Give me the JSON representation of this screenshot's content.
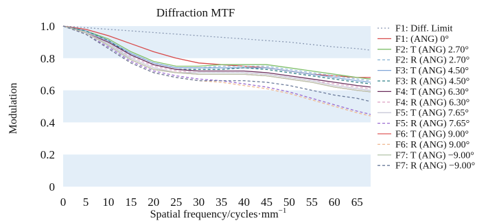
{
  "chart_data": {
    "type": "line",
    "title": "Diffraction MTF",
    "xlabel": "Spatial frequency/cycles·mm",
    "xlabel_superscript": "−1",
    "ylabel": "Modulation",
    "xlim": [
      0,
      68
    ],
    "ylim": [
      0,
      1.0
    ],
    "xticks": [
      "0",
      "5",
      "10",
      "15",
      "20",
      "25",
      "30",
      "35",
      "40",
      "45",
      "50",
      "55",
      "60",
      "65"
    ],
    "yticks": [
      "0",
      "0.2",
      "0.4",
      "0.6",
      "0.8",
      "1.0"
    ],
    "background_bands": "alternating light blue",
    "legend_position": "right",
    "x": [
      0,
      5,
      10,
      15,
      20,
      25,
      30,
      35,
      40,
      45,
      50,
      55,
      60,
      65,
      68
    ],
    "series": [
      {
        "name": "F1: Diff. Limit",
        "color": "#8a99b3",
        "dash": "dotted",
        "values": [
          1.0,
          0.99,
          0.98,
          0.97,
          0.96,
          0.95,
          0.94,
          0.93,
          0.92,
          0.91,
          0.9,
          0.885,
          0.87,
          0.86,
          0.85
        ]
      },
      {
        "name": "F1: (ANG) 0°",
        "color": "#d84a4a",
        "dash": "solid",
        "values": [
          1.0,
          0.98,
          0.94,
          0.89,
          0.84,
          0.8,
          0.77,
          0.76,
          0.75,
          0.74,
          0.72,
          0.7,
          0.69,
          0.68,
          0.68
        ]
      },
      {
        "name": "F2: T (ANG) 2.70°",
        "color": "#7fbf6a",
        "dash": "solid",
        "values": [
          1.0,
          0.97,
          0.92,
          0.84,
          0.78,
          0.75,
          0.75,
          0.76,
          0.76,
          0.76,
          0.74,
          0.72,
          0.7,
          0.68,
          0.67
        ]
      },
      {
        "name": "F2: R (ANG) 2.70°",
        "color": "#8fb8d6",
        "dash": "dashed",
        "values": [
          1.0,
          0.97,
          0.91,
          0.83,
          0.77,
          0.74,
          0.74,
          0.75,
          0.75,
          0.75,
          0.73,
          0.71,
          0.69,
          0.67,
          0.66
        ]
      },
      {
        "name": "F3: T (ANG) 4.50°",
        "color": "#7fa6d8",
        "dash": "solid",
        "values": [
          1.0,
          0.97,
          0.91,
          0.83,
          0.77,
          0.74,
          0.74,
          0.74,
          0.74,
          0.74,
          0.72,
          0.7,
          0.68,
          0.66,
          0.65
        ]
      },
      {
        "name": "F3: R (ANG) 4.50°",
        "color": "#2f7f86",
        "dash": "dashed",
        "values": [
          1.0,
          0.97,
          0.91,
          0.82,
          0.76,
          0.73,
          0.73,
          0.73,
          0.74,
          0.73,
          0.71,
          0.69,
          0.67,
          0.65,
          0.64
        ]
      },
      {
        "name": "F4: T (ANG) 6.30°",
        "color": "#6a2c5a",
        "dash": "solid",
        "values": [
          1.0,
          0.96,
          0.9,
          0.82,
          0.76,
          0.73,
          0.72,
          0.72,
          0.72,
          0.71,
          0.69,
          0.67,
          0.65,
          0.63,
          0.62
        ]
      },
      {
        "name": "F4: R (ANG) 6.30°",
        "color": "#e0a8c8",
        "dash": "dashed",
        "values": [
          1.0,
          0.96,
          0.89,
          0.81,
          0.75,
          0.72,
          0.71,
          0.71,
          0.71,
          0.7,
          0.68,
          0.66,
          0.64,
          0.62,
          0.61
        ]
      },
      {
        "name": "F5: T (ANG) 7.65°",
        "color": "#c8c8d8",
        "dash": "solid",
        "values": [
          1.0,
          0.96,
          0.89,
          0.8,
          0.74,
          0.71,
          0.71,
          0.71,
          0.71,
          0.7,
          0.68,
          0.66,
          0.63,
          0.61,
          0.6
        ]
      },
      {
        "name": "F5: R (ANG) 7.65°",
        "color": "#9a6ad0",
        "dash": "dashed",
        "values": [
          1.0,
          0.95,
          0.87,
          0.78,
          0.72,
          0.69,
          0.67,
          0.66,
          0.64,
          0.62,
          0.59,
          0.55,
          0.51,
          0.47,
          0.45
        ]
      },
      {
        "name": "F6: T (ANG) 9.00°",
        "color": "#e05a5a",
        "dash": "solid",
        "values": [
          1.0,
          0.96,
          0.88,
          0.79,
          0.73,
          0.71,
          0.7,
          0.7,
          0.7,
          0.69,
          0.67,
          0.65,
          0.62,
          0.6,
          0.59
        ]
      },
      {
        "name": "F6: R (ANG) 9.00°",
        "color": "#f0b890",
        "dash": "dashed",
        "values": [
          1.0,
          0.95,
          0.86,
          0.77,
          0.71,
          0.68,
          0.66,
          0.65,
          0.63,
          0.61,
          0.58,
          0.54,
          0.5,
          0.46,
          0.44
        ]
      },
      {
        "name": "F7: T (ANG) −9.00°",
        "color": "#b8c8b0",
        "dash": "solid",
        "values": [
          1.0,
          0.96,
          0.88,
          0.79,
          0.73,
          0.71,
          0.7,
          0.7,
          0.7,
          0.69,
          0.67,
          0.65,
          0.62,
          0.6,
          0.59
        ]
      },
      {
        "name": "F7: R (ANG) −9.00°",
        "color": "#6a7a9a",
        "dash": "dashed",
        "values": [
          1.0,
          0.95,
          0.86,
          0.77,
          0.71,
          0.68,
          0.66,
          0.66,
          0.66,
          0.65,
          0.63,
          0.6,
          0.57,
          0.55,
          0.53
        ]
      }
    ]
  }
}
